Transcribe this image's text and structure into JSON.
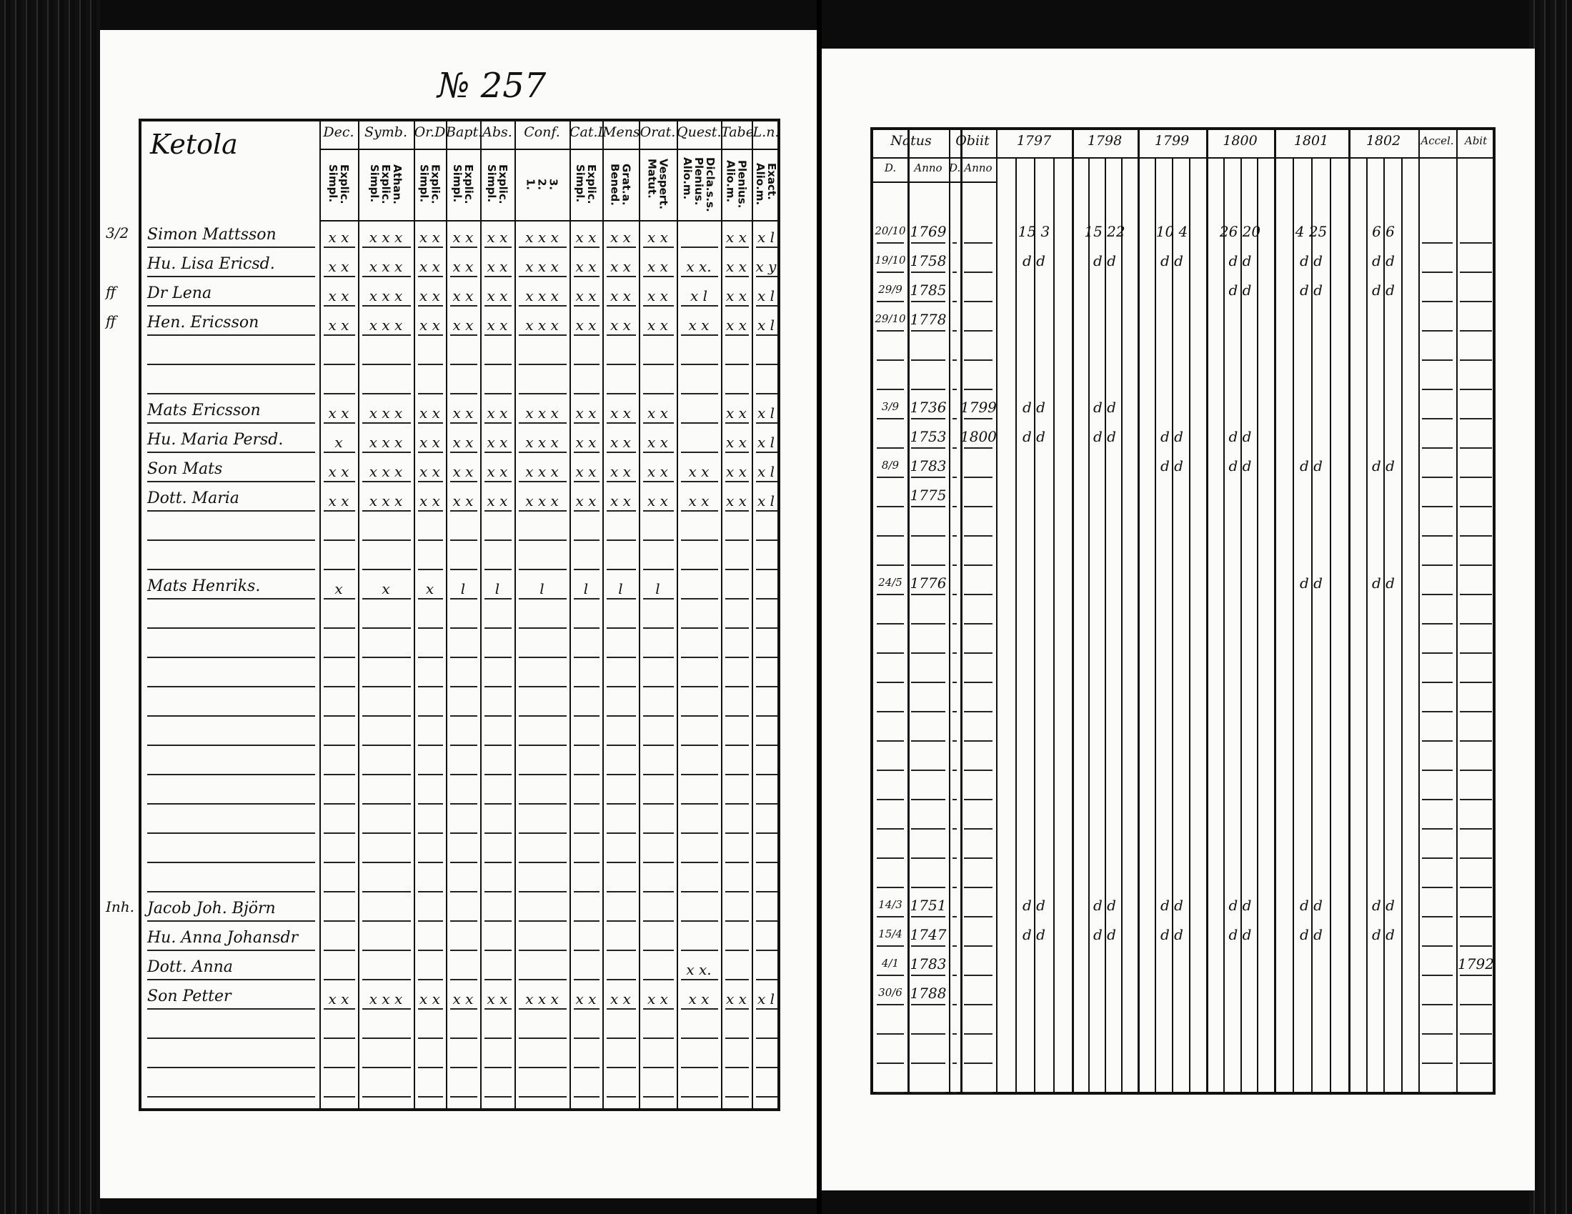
{
  "document": {
    "page_number": "№ 257",
    "left": {
      "title": "Ketola",
      "column_groups": [
        "Dec.",
        "Symb.",
        "Or.D",
        "Bapt.",
        "Abs.",
        "Conf.",
        "Cat.D",
        "Mens.",
        "Orat.",
        "Quest.",
        "Tabe.",
        "L.n."
      ],
      "column_sub": [
        "Explic.\nSimpl.",
        "Athan.\nExplic.\nSimpl.",
        "Explic.\nSimpl.",
        "Explic.\nSimpl.",
        "Explic.\nSimpl.",
        "3.\n2.\n1.",
        "Explic.\nSimpl.",
        "Grat.a.\nBened.",
        "Vespert.\nMatut.",
        "Dicla.s.s.\nPlenius.\nAlio.m.",
        "Plenius.\nAlio.m.",
        "Exact.\nAlio.m."
      ],
      "rows": [
        {
          "row": 0,
          "margin": "3/2",
          "name": "Simon Mattsson",
          "marks": [
            "x x",
            "x x x",
            "x x",
            "x x",
            "x x",
            "x x x",
            "x x",
            "x x",
            "x x",
            "",
            "x x",
            "x l"
          ]
        },
        {
          "row": 1,
          "margin": "",
          "name": "Hu. Lisa Ericsd.",
          "marks": [
            "x x",
            "x x x",
            "x x",
            "x x",
            "x x",
            "x x x",
            "x x",
            "x x",
            "x x",
            "x x.",
            "x x",
            "x y"
          ]
        },
        {
          "row": 2,
          "margin": "ff",
          "name": "Dr Lena",
          "marks": [
            "x x",
            "x x x",
            "x x",
            "x x",
            "x x",
            "x x x",
            "x x",
            "x x",
            "x x",
            "x l",
            "x x",
            "x l"
          ]
        },
        {
          "row": 3,
          "margin": "ff",
          "name": "Hen. Ericsson",
          "marks": [
            "x x",
            "x x x",
            "x x",
            "x x",
            "x x",
            "x x x",
            "x x",
            "x x",
            "x x",
            "x x",
            "x x",
            "x l"
          ]
        },
        {
          "row": 6,
          "margin": "",
          "name": "Mats Ericsson",
          "marks": [
            "x x",
            "x x x",
            "x x",
            "x x",
            "x x",
            "x x x",
            "x x",
            "x x",
            "x x",
            "",
            "x x",
            "x l"
          ]
        },
        {
          "row": 7,
          "margin": "",
          "name": "Hu. Maria Persd.",
          "marks": [
            "x",
            "x x x",
            "x x",
            "x x",
            "x x",
            "x x x",
            "x x",
            "x x",
            "x x",
            "",
            "x x",
            "x l"
          ]
        },
        {
          "row": 8,
          "margin": "",
          "name": "Son Mats",
          "marks": [
            "x x",
            "x x x",
            "x x",
            "x x",
            "x x",
            "x x x",
            "x x",
            "x x",
            "x x",
            "x x",
            "x x",
            "x l"
          ]
        },
        {
          "row": 9,
          "margin": "",
          "name": "Dott. Maria",
          "marks": [
            "x x",
            "x x x",
            "x x",
            "x x",
            "x x",
            "x x x",
            "x x",
            "x x",
            "x x",
            "x x",
            "x x",
            "x l"
          ]
        },
        {
          "row": 12,
          "margin": "",
          "name": "Mats Henriks.",
          "marks": [
            "x",
            "x",
            "x",
            "l",
            "l",
            "l",
            "l",
            "l",
            "l",
            "",
            "",
            ""
          ]
        },
        {
          "row": 23,
          "margin": "Inh.",
          "name": "Jacob Joh. Björn",
          "marks": [
            "",
            "",
            "",
            "",
            "",
            "",
            "",
            "",
            "",
            "",
            "",
            ""
          ]
        },
        {
          "row": 24,
          "margin": "",
          "name": "Hu. Anna Johansdr",
          "marks": [
            "",
            "",
            "",
            "",
            "",
            "",
            "",
            "",
            "",
            "",
            "",
            ""
          ]
        },
        {
          "row": 25,
          "margin": "",
          "name": "Dott. Anna",
          "marks": [
            "",
            "",
            "",
            "",
            "",
            "",
            "",
            "",
            "",
            "x x.",
            "",
            ""
          ]
        },
        {
          "row": 26,
          "margin": "",
          "name": "Son Petter",
          "marks": [
            "x x",
            "x x x",
            "x x",
            "x x",
            "x x",
            "x x x",
            "x x",
            "x x",
            "x x",
            "x x",
            "x x",
            "x l"
          ]
        }
      ]
    },
    "right": {
      "headers": {
        "natus": "Natus",
        "obiit": "Obiit",
        "d": "D.",
        "anno": "Anno",
        "accel": "Accel.",
        "abit": "Abit"
      },
      "years": [
        "1797",
        "1798",
        "1799",
        "1800",
        "1801",
        "1802"
      ],
      "rows": [
        {
          "row": 0,
          "natus_d": "20/10",
          "natus_anno": "1769",
          "obiit_anno": "",
          "years": [
            "15 3",
            "15 22",
            "10 4",
            "26 20",
            "4 25",
            "6 6"
          ],
          "abit": ""
        },
        {
          "row": 1,
          "natus_d": "19/10",
          "natus_anno": "1758",
          "obiit_anno": "",
          "years": [
            "d d",
            "d d",
            "d d",
            "d d",
            "d d",
            "d d"
          ],
          "abit": ""
        },
        {
          "row": 2,
          "natus_d": "29/9",
          "natus_anno": "1785",
          "obiit_anno": "",
          "years": [
            "",
            "",
            "",
            "d d",
            "d d",
            "d d"
          ],
          "abit": ""
        },
        {
          "row": 3,
          "natus_d": "29/10",
          "natus_anno": "1778",
          "obiit_anno": "",
          "years": [
            "",
            "",
            "",
            "",
            "",
            ""
          ],
          "abit": ""
        },
        {
          "row": 6,
          "natus_d": "3/9",
          "natus_anno": "1736",
          "obiit_anno": "1799",
          "years": [
            "d d",
            "d d",
            "",
            "",
            "",
            ""
          ],
          "abit": ""
        },
        {
          "row": 7,
          "natus_d": "",
          "natus_anno": "1753",
          "obiit_anno": "1800",
          "years": [
            "d d",
            "d d",
            "d d",
            "d d",
            "",
            ""
          ],
          "abit": ""
        },
        {
          "row": 8,
          "natus_d": "8/9",
          "natus_anno": "1783",
          "obiit_anno": "",
          "years": [
            "",
            "",
            "d d",
            "d d",
            "d d",
            "d d"
          ],
          "abit": ""
        },
        {
          "row": 9,
          "natus_d": "",
          "natus_anno": "1775",
          "obiit_anno": "",
          "years": [
            "",
            "",
            "",
            "",
            "",
            ""
          ],
          "abit": ""
        },
        {
          "row": 12,
          "natus_d": "24/5",
          "natus_anno": "1776",
          "obiit_anno": "",
          "years": [
            "",
            "",
            "",
            "",
            "d d",
            "d d"
          ],
          "abit": ""
        },
        {
          "row": 23,
          "natus_d": "14/3",
          "natus_anno": "1751",
          "obiit_anno": "",
          "years": [
            "d d",
            "d d",
            "d d",
            "d d",
            "d d",
            "d d"
          ],
          "abit": ""
        },
        {
          "row": 24,
          "natus_d": "15/4",
          "natus_anno": "1747",
          "obiit_anno": "",
          "years": [
            "d d",
            "d d",
            "d d",
            "d d",
            "d d",
            "d d"
          ],
          "abit": ""
        },
        {
          "row": 25,
          "natus_d": "4/1",
          "natus_anno": "1783",
          "obiit_anno": "",
          "years": [
            "",
            "",
            "",
            "",
            "",
            ""
          ],
          "abit": "1792"
        },
        {
          "row": 26,
          "natus_d": "30/6",
          "natus_anno": "1788",
          "obiit_anno": "",
          "years": [
            "",
            "",
            "",
            "",
            "",
            ""
          ],
          "abit": ""
        }
      ]
    }
  }
}
